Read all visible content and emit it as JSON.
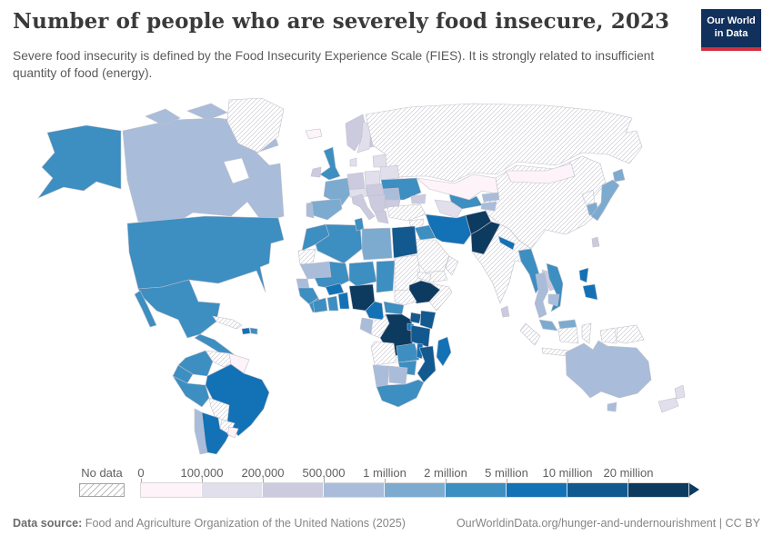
{
  "header": {
    "title": "Number of people who are severely food insecure, 2023",
    "subtitle": "Severe food insecurity is defined by the Food Insecurity Experience Scale (FIES). It is strongly related to insufficient quantity of food (energy).",
    "logo_line1": "Our World",
    "logo_line2": "in Data"
  },
  "legend": {
    "no_data_label": "No data"
  },
  "footer": {
    "source_label": "Data source:",
    "source_text": " Food and Agriculture Organization of the United Nations (2025)",
    "link_text": "OurWorldinData.org/hunger-and-undernourishment",
    "separator": " | ",
    "license": "CC BY"
  },
  "colors": {
    "logo_bg": "#12305c",
    "logo_red": "#d1303f",
    "border": "#c1c1cb",
    "hatch_line": "#bcbcbc",
    "ocean": "#ffffff"
  },
  "chart_data": {
    "type": "choropleth_map",
    "title": "Number of people who are severely food insecure",
    "year": "2023",
    "unit": "people",
    "legend_position": "bottom",
    "no_data": {
      "label": "No data",
      "pattern": "diagonal-hatch"
    },
    "bins": [
      {
        "key": "0-100k",
        "min_label": "0",
        "color": "#fdf3f8"
      },
      {
        "key": "100k-200k",
        "min_label": "100,000",
        "color": "#e2dfed"
      },
      {
        "key": "200k-500k",
        "min_label": "200,000",
        "color": "#cbcade"
      },
      {
        "key": "500k-1m",
        "min_label": "500,000",
        "color": "#a9bcda"
      },
      {
        "key": "1m-2m",
        "min_label": "1 million",
        "color": "#7dabd0"
      },
      {
        "key": "2m-5m",
        "min_label": "2 million",
        "color": "#3d8ec1"
      },
      {
        "key": "5m-10m",
        "min_label": "5 million",
        "color": "#1371b5"
      },
      {
        "key": "10m-20m",
        "min_label": "10 million",
        "color": "#12598f"
      },
      {
        "key": "20m+",
        "min_label": "20 million",
        "color": "#0d3a5f"
      }
    ],
    "countries": {
      "United States": "2m-5m",
      "Canada": "500k-1m",
      "Greenland": "no-data",
      "Mexico": "2m-5m",
      "Central America": "2m-5m",
      "Cuba": "no-data",
      "Haiti": "5m-10m",
      "Dominican Republic": "2m-5m",
      "Colombia": "2m-5m",
      "Venezuela": "no-data",
      "Guyana and Suriname": "0-100k",
      "Ecuador": "2m-5m",
      "Peru": "2m-5m",
      "Brazil": "5m-10m",
      "Bolivia": "no-data",
      "Paraguay": "no-data",
      "Chile": "500k-1m",
      "Argentina": "5m-10m",
      "Uruguay": "0-100k",
      "Iceland": "0-100k",
      "Ireland": "200k-500k",
      "United Kingdom": "2m-5m",
      "Norway": "200k-500k",
      "Sweden": "100k-200k",
      "Finland": "200k-500k",
      "Denmark": "100k-200k",
      "Germany": "200k-500k",
      "Poland": "100k-200k",
      "Belarus": "100k-200k",
      "Baltic states": "100k-200k",
      "France": "1m-2m",
      "Spain": "1m-2m",
      "Portugal": "500k-1m",
      "Alpine states": "100k-200k",
      "Italy": "200k-500k",
      "Central Europe": "200k-500k",
      "Romania": "500k-1m",
      "Bulgaria": "200k-500k",
      "Balkans": "200k-500k",
      "Greece": "200k-500k",
      "Ukraine": "2m-5m",
      "Russia": "no-data",
      "Kazakhstan": "0-100k",
      "Uzbekistan": "2m-5m",
      "Turkmenistan": "100k-200k",
      "Kyrgyzstan": "500k-1m",
      "Tajikistan": "500k-1m",
      "Caucasus": "200k-500k",
      "Turkey": "no-data",
      "Syria": "no-data",
      "Levant": "0-100k",
      "Iraq": "2m-5m",
      "Iran": "5m-10m",
      "Afghanistan": "20m+",
      "Pakistan": "20m+",
      "Saudi Arabia": "no-data",
      "Yemen": "no-data",
      "Oman": "no-data",
      "India": "no-data",
      "Nepal": "5m-10m",
      "Bangladesh": "2m-5m",
      "Sri Lanka": "200k-500k",
      "China": "no-data",
      "Mongolia": "0-100k",
      "North Korea": "no-data",
      "South Korea": "1m-2m",
      "Japan": "1m-2m",
      "Taiwan": "200k-500k",
      "Myanmar": "2m-5m",
      "Thailand": "500k-1m",
      "Laos": "200k-500k",
      "Vietnam": "2m-5m",
      "Cambodia": "500k-1m",
      "Malaysia": "1m-2m",
      "Indonesia": "no-data",
      "Papua New Guinea": "no-data",
      "Philippines": "5m-10m",
      "Morocco": "2m-5m",
      "Algeria": "2m-5m",
      "Tunisia": "2m-5m",
      "Libya": "1m-2m",
      "Egypt": "10m-20m",
      "Western Sahara": "no-data",
      "Mauritania": "500k-1m",
      "Senegal": "500k-1m",
      "Guinea region": "2m-5m",
      "Cote d'Ivoire": "2m-5m",
      "Ghana": "2m-5m",
      "Togo and Benin": "5m-10m",
      "Mali": "2m-5m",
      "Burkina Faso": "5m-10m",
      "Niger": "2m-5m",
      "Nigeria": "20m+",
      "Chad": "2m-5m",
      "Sudan": "no-data",
      "Eritrea and Djibouti": "no-data",
      "Ethiopia": "20m+",
      "Somalia": "no-data",
      "South Sudan": "no-data",
      "Cameroon": "5m-10m",
      "Central African Republic": "2m-5m",
      "Gabon": "500k-1m",
      "Republic of Congo": "no-data",
      "Democratic Republic of Congo": "20m+",
      "Uganda": "10m-20m",
      "Kenya": "10m-20m",
      "Rwanda and Burundi": "5m-10m",
      "Tanzania": "10m-20m",
      "Angola": "no-data",
      "Zambia": "2m-5m",
      "Malawi": "5m-10m",
      "Mozambique": "10m-20m",
      "Zimbabwe": "2m-5m",
      "Botswana": "500k-1m",
      "Namibia": "500k-1m",
      "South Africa": "2m-5m",
      "Madagascar": "5m-10m",
      "Australia": "500k-1m",
      "New Zealand": "100k-200k"
    }
  }
}
